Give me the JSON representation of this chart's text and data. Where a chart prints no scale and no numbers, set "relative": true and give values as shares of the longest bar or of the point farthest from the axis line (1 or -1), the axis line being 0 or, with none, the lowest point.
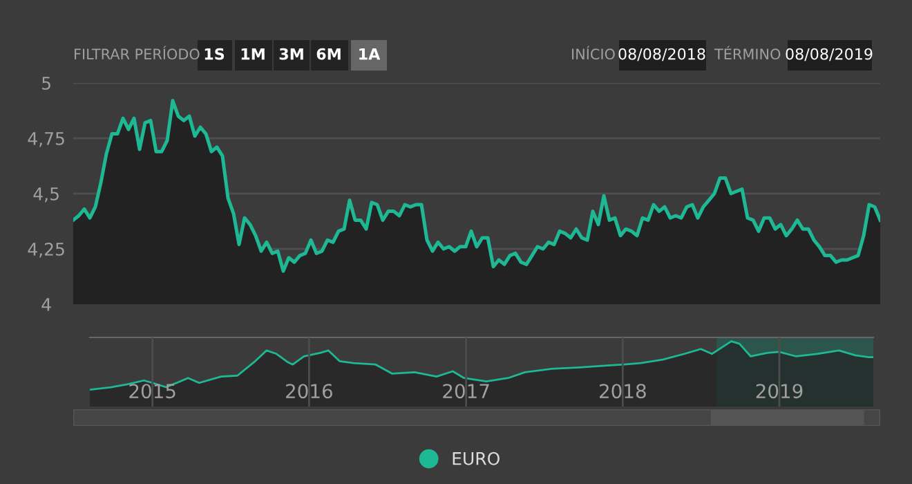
{
  "chart_data": [
    {
      "type": "area",
      "annotations": [
        "FILTRAR PERÍODO",
        "1S",
        "1M",
        "3M",
        "6M",
        "1A",
        "INÍCIO",
        "08/08/2018",
        "TÉRMINO",
        "08/08/2019"
      ],
      "ylim": [
        4,
        5
      ],
      "yticks": [
        4,
        {
          "value": 4.25,
          "label": "4,25"
        },
        {
          "value": 4.5,
          "label": "4,5"
        },
        {
          "value": 4.75,
          "label": "4,75"
        },
        5
      ],
      "grid": "y",
      "legend": "bottom",
      "tick_labels": "y",
      "categories": [
        null,
        null,
        null,
        null,
        null,
        null,
        null,
        null,
        null,
        null,
        null,
        null,
        null,
        null,
        null,
        null,
        null,
        null,
        null,
        null,
        null,
        null,
        null,
        null,
        null,
        null,
        null,
        null,
        null,
        null,
        null,
        null,
        null,
        null,
        null,
        null,
        null,
        null,
        null,
        null,
        null,
        null,
        null,
        null,
        null,
        null,
        null,
        null,
        null,
        null,
        null,
        null,
        null,
        null,
        null,
        null,
        null,
        null,
        null,
        null,
        null,
        null,
        null,
        null,
        null,
        null,
        null,
        null,
        null,
        null,
        null,
        null,
        null,
        null,
        null,
        null,
        null,
        null,
        null,
        null,
        null,
        null,
        null,
        null,
        null,
        null,
        null,
        null,
        null,
        null,
        null,
        null,
        null,
        null,
        null,
        null,
        null,
        null,
        null,
        null,
        null,
        null,
        null,
        null,
        null,
        null,
        null,
        null,
        null,
        null,
        null,
        null,
        null,
        null,
        null,
        null,
        null,
        null,
        null,
        null,
        null,
        null,
        null,
        null,
        null,
        null,
        null,
        null,
        null,
        null,
        null,
        null,
        null,
        null,
        null,
        null,
        null,
        null,
        null,
        null,
        null,
        null,
        null,
        null,
        null,
        null,
        null
      ],
      "series": [
        {
          "name": "EURO",
          "color": "#1fb894",
          "values": [
            4.38,
            4.4,
            4.43,
            4.39,
            4.44,
            4.55,
            4.68,
            4.77,
            4.77,
            4.84,
            4.79,
            4.84,
            4.7,
            4.82,
            4.83,
            4.69,
            4.69,
            4.74,
            4.92,
            4.85,
            4.83,
            4.85,
            4.76,
            4.8,
            4.77,
            4.69,
            4.71,
            4.67,
            4.48,
            4.41,
            4.27,
            4.39,
            4.36,
            4.31,
            4.24,
            4.28,
            4.23,
            4.24,
            4.15,
            4.21,
            4.19,
            4.22,
            4.23,
            4.29,
            4.23,
            4.24,
            4.29,
            4.28,
            4.33,
            4.34,
            4.47,
            4.38,
            4.38,
            4.34,
            4.46,
            4.45,
            4.38,
            4.42,
            4.42,
            4.4,
            4.45,
            4.44,
            4.45,
            4.45,
            4.29,
            4.24,
            4.28,
            4.25,
            4.26,
            4.24,
            4.26,
            4.26,
            4.33,
            4.26,
            4.3,
            4.3,
            4.17,
            4.2,
            4.18,
            4.22,
            4.23,
            4.19,
            4.18,
            4.22,
            4.26,
            4.25,
            4.28,
            4.27,
            4.33,
            4.32,
            4.3,
            4.34,
            4.3,
            4.29,
            4.42,
            4.36,
            4.49,
            4.38,
            4.39,
            4.31,
            4.34,
            4.33,
            4.31,
            4.39,
            4.38,
            4.45,
            4.42,
            4.44,
            4.39,
            4.4,
            4.39,
            4.44,
            4.45,
            4.39,
            4.44,
            4.47,
            4.5,
            4.57,
            4.57,
            4.5,
            4.51,
            4.52,
            4.39,
            4.38,
            4.33,
            4.39,
            4.39,
            4.34,
            4.36,
            4.31,
            4.34,
            4.38,
            4.34,
            4.34,
            4.29,
            4.26,
            4.22,
            4.22,
            4.19,
            4.2,
            4.2,
            4.21,
            4.22,
            4.31,
            4.45,
            4.44,
            4.38
          ]
        }
      ]
    },
    {
      "type": "area",
      "relative": true,
      "tick_labels": "x",
      "grid": "x",
      "xlim": [
        "2014-08-08",
        "2019-08-08"
      ],
      "xticks": [
        {
          "value": "2015-01-01",
          "label": "2015"
        },
        {
          "value": "2016-01-01",
          "label": "2016"
        },
        {
          "value": "2017-01-01",
          "label": "2017"
        },
        {
          "value": "2018-01-01",
          "label": "2018"
        },
        {
          "value": "2019-01-01",
          "label": "2019"
        }
      ],
      "bands": [
        {
          "axis": "x",
          "from": "2018-08-08",
          "to": "2019-08-08",
          "color": "#2b5a4e"
        }
      ],
      "x": [
        "2014-08-08",
        "2014-09-26",
        "2014-11-03",
        "2014-12-12",
        "2015-01-01",
        "2015-02-02",
        "2015-03-25",
        "2015-04-20",
        "2015-06-10",
        "2015-07-18",
        "2015-08-26",
        "2015-09-24",
        "2015-10-17",
        "2015-11-12",
        "2015-11-24",
        "2015-12-20",
        "2016-01-27",
        "2016-02-15",
        "2016-03-12",
        "2016-04-13",
        "2016-06-04",
        "2016-07-13",
        "2016-09-03",
        "2016-10-24",
        "2016-12-01",
        "2016-12-27",
        "2017-02-17",
        "2017-04-09",
        "2017-05-18",
        "2017-07-20",
        "2017-09-23",
        "2017-11-26",
        "2018-01-04",
        "2018-02-12",
        "2018-04-04",
        "2018-05-25",
        "2018-07-02",
        "2018-07-28",
        "2018-09-11",
        "2018-09-30",
        "2018-10-26",
        "2018-12-04",
        "2019-01-01",
        "2019-02-08",
        "2019-03-30",
        "2019-05-20",
        "2019-06-27",
        "2019-07-29",
        "2019-08-08"
      ],
      "series": [
        {
          "color": "#1fb894",
          "values": [
            0,
            0.05,
            0.11,
            0.19,
            0.14,
            0.05,
            0.24,
            0.14,
            0.27,
            0.29,
            0.57,
            0.81,
            0.74,
            0.57,
            0.52,
            0.69,
            0.76,
            0.81,
            0.59,
            0.55,
            0.52,
            0.33,
            0.36,
            0.27,
            0.38,
            0.24,
            0.17,
            0.24,
            0.36,
            0.43,
            0.46,
            0.5,
            0.52,
            0.55,
            0.62,
            0.74,
            0.84,
            0.74,
            1.0,
            0.95,
            0.69,
            0.76,
            0.78,
            0.69,
            0.74,
            0.81,
            0.71,
            0.67,
            0.67
          ]
        }
      ]
    }
  ]
}
